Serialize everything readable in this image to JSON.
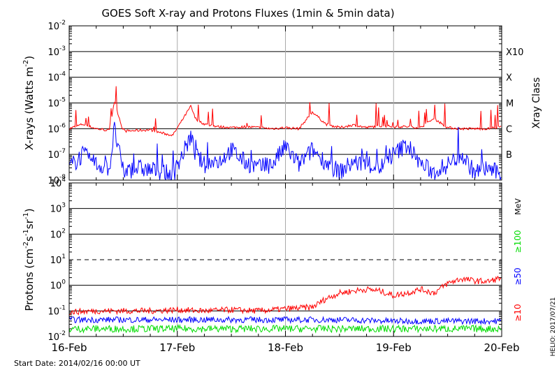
{
  "chart_data": [
    {
      "type": "line",
      "title": "GOES Soft X-ray and Protons Fluxes   (1min & 5min data)",
      "ylabel_parts": [
        "X-rays (Watts m",
        "-2",
        ")"
      ],
      "yscale": "log",
      "ylim": [
        1e-08,
        0.01
      ],
      "ytick_labels": [
        {
          "base": "10",
          "exp": "-8"
        },
        {
          "base": "10",
          "exp": "-7"
        },
        {
          "base": "10",
          "exp": "-6"
        },
        {
          "base": "10",
          "exp": "-5"
        },
        {
          "base": "10",
          "exp": "-4"
        },
        {
          "base": "10",
          "exp": "-3"
        },
        {
          "base": "10",
          "exp": "-2"
        }
      ],
      "right_axis_title": "Xray Class",
      "class_labels": [
        "B",
        "C",
        "M",
        "X",
        "X10"
      ],
      "x_days": [
        "2014-02-16",
        "2014-02-17",
        "2014-02-18",
        "2014-02-19",
        "2014-02-20"
      ],
      "grid": true,
      "series": [
        {
          "color": "#ff0000",
          "x": [
            "2014-02-16 00:00",
            "2014-02-16 03:00",
            "2014-02-16 06:00",
            "2014-02-16 09:00",
            "2014-02-16 10:00",
            "2014-02-16 12:00",
            "2014-02-16 15:00",
            "2014-02-16 18:00",
            "2014-02-16 21:00",
            "2014-02-16 23:00",
            "2014-02-17 03:00",
            "2014-02-17 04:00",
            "2014-02-17 06:00",
            "2014-02-17 09:00",
            "2014-02-17 12:00",
            "2014-02-17 15:00",
            "2014-02-17 18:00",
            "2014-02-17 21:00",
            "2014-02-18 00:00",
            "2014-02-18 03:00",
            "2014-02-18 06:00",
            "2014-02-18 09:00",
            "2014-02-18 12:00",
            "2014-02-18 15:00",
            "2014-02-18 18:00",
            "2014-02-18 21:00",
            "2014-02-19 00:00",
            "2014-02-19 03:00",
            "2014-02-19 06:00",
            "2014-02-19 09:00",
            "2014-02-19 12:00",
            "2014-02-19 15:00",
            "2014-02-19 18:00",
            "2014-02-19 21:00",
            "2014-02-20 00:00"
          ],
          "y": [
            1e-06,
            1.5e-06,
            1e-06,
            8.5e-07,
            1.2e-05,
            8e-07,
            8.5e-07,
            9e-07,
            6.5e-07,
            5.5e-07,
            7.5e-06,
            2.5e-06,
            1.5e-06,
            1.2e-06,
            1.1e-06,
            1.2e-06,
            1.1e-06,
            1e-06,
            1.1e-06,
            1e-06,
            4.5e-06,
            1.5e-06,
            1.1e-06,
            1.4e-06,
            1.1e-06,
            1.3e-06,
            1.2e-06,
            1.2e-06,
            1.1e-06,
            2.5e-06,
            1.1e-06,
            1e-06,
            1e-06,
            1e-06,
            1.2e-06
          ]
        },
        {
          "color": "#0000ff",
          "x": [
            "2014-02-16 00:00",
            "2014-02-16 03:00",
            "2014-02-16 06:00",
            "2014-02-16 09:00",
            "2014-02-16 10:00",
            "2014-02-16 12:00",
            "2014-02-16 15:00",
            "2014-02-16 18:00",
            "2014-02-16 21:00",
            "2014-02-16 23:00",
            "2014-02-17 03:00",
            "2014-02-17 04:00",
            "2014-02-17 06:00",
            "2014-02-17 09:00",
            "2014-02-17 12:00",
            "2014-02-17 15:00",
            "2014-02-17 18:00",
            "2014-02-17 21:00",
            "2014-02-18 00:00",
            "2014-02-18 03:00",
            "2014-02-18 06:00",
            "2014-02-18 09:00",
            "2014-02-18 12:00",
            "2014-02-18 15:00",
            "2014-02-18 18:00",
            "2014-02-18 21:00",
            "2014-02-19 00:00",
            "2014-02-19 03:00",
            "2014-02-19 06:00",
            "2014-02-19 09:00",
            "2014-02-19 12:00",
            "2014-02-19 15:00",
            "2014-02-19 18:00",
            "2014-02-19 21:00",
            "2014-02-20 00:00"
          ],
          "y": [
            3e-08,
            1e-07,
            4e-08,
            3e-08,
            1e-06,
            2e-08,
            3e-08,
            2.5e-08,
            2e-08,
            1.5e-08,
            5e-07,
            1e-07,
            4e-08,
            5e-08,
            1.5e-07,
            5e-08,
            3e-08,
            4e-08,
            2e-07,
            4e-08,
            1.5e-07,
            5e-08,
            2e-08,
            5e-08,
            4e-08,
            3e-08,
            1e-07,
            2.5e-07,
            4e-08,
            2e-08,
            4e-08,
            1e-07,
            2e-08,
            3e-08,
            1.5e-08
          ]
        }
      ]
    },
    {
      "type": "line",
      "ylabel_parts": [
        "Protons (cm",
        "-2",
        "s",
        "-1",
        "sr",
        "-1",
        ")"
      ],
      "yscale": "log",
      "ylim": [
        0.01,
        10000
      ],
      "ytick_labels": [
        {
          "base": "10",
          "exp": "-2"
        },
        {
          "base": "10",
          "exp": "-1"
        },
        {
          "base": "10",
          "exp": "0"
        },
        {
          "base": "10",
          "exp": "1"
        },
        {
          "base": "10",
          "exp": "2"
        },
        {
          "base": "10",
          "exp": "3"
        },
        {
          "base": "10",
          "exp": "4"
        }
      ],
      "threshold": {
        "value": 10,
        "style": "dashed"
      },
      "unit_label": "MeV",
      "energy_labels": [
        {
          "text": "≥100",
          "color": "#00dd00"
        },
        {
          "text": "≥50",
          "color": "#0000ff"
        },
        {
          "text": "≥10",
          "color": "#ff0000"
        }
      ],
      "x_days": [
        "2014-02-16",
        "2014-02-17",
        "2014-02-18",
        "2014-02-19",
        "2014-02-20"
      ],
      "xtick_labels": [
        "16-Feb",
        "17-Feb",
        "18-Feb",
        "19-Feb",
        "20-Feb"
      ],
      "grid": true,
      "series": [
        {
          "name": "≥10",
          "color": "#ff0000",
          "x": [
            "2014-02-16 00:00",
            "2014-02-16 06:00",
            "2014-02-16 12:00",
            "2014-02-16 18:00",
            "2014-02-17 00:00",
            "2014-02-17 06:00",
            "2014-02-17 12:00",
            "2014-02-17 18:00",
            "2014-02-18 00:00",
            "2014-02-18 06:00",
            "2014-02-18 09:00",
            "2014-02-18 12:00",
            "2014-02-18 15:00",
            "2014-02-18 18:00",
            "2014-02-18 21:00",
            "2014-02-19 00:00",
            "2014-02-19 03:00",
            "2014-02-19 06:00",
            "2014-02-19 09:00",
            "2014-02-19 12:00",
            "2014-02-19 15:00",
            "2014-02-19 18:00",
            "2014-02-19 21:00",
            "2014-02-20 00:00"
          ],
          "y": [
            0.09,
            0.1,
            0.1,
            0.1,
            0.11,
            0.1,
            0.11,
            0.1,
            0.12,
            0.14,
            0.3,
            0.5,
            0.6,
            0.7,
            0.6,
            0.4,
            0.5,
            0.7,
            0.5,
            1.2,
            1.8,
            1.5,
            1.4,
            2.0
          ]
        },
        {
          "name": "≥50",
          "color": "#0000ff",
          "x": [
            "2014-02-16 00:00",
            "2014-02-16 12:00",
            "2014-02-17 00:00",
            "2014-02-17 12:00",
            "2014-02-18 00:00",
            "2014-02-18 12:00",
            "2014-02-19 00:00",
            "2014-02-19 12:00",
            "2014-02-20 00:00"
          ],
          "y": [
            0.045,
            0.045,
            0.045,
            0.045,
            0.045,
            0.045,
            0.04,
            0.04,
            0.04
          ]
        },
        {
          "name": "≥100",
          "color": "#00dd00",
          "x": [
            "2014-02-16 00:00",
            "2014-02-16 12:00",
            "2014-02-17 00:00",
            "2014-02-17 12:00",
            "2014-02-18 00:00",
            "2014-02-18 12:00",
            "2014-02-19 00:00",
            "2014-02-19 12:00",
            "2014-02-20 00:00"
          ],
          "y": [
            0.02,
            0.02,
            0.02,
            0.02,
            0.02,
            0.02,
            0.02,
            0.02,
            0.02
          ]
        }
      ]
    }
  ],
  "footer": {
    "start_date": "Start Date: 2014/02/16 00:00 UT",
    "credit": "HELIO: 2017/07/21"
  }
}
